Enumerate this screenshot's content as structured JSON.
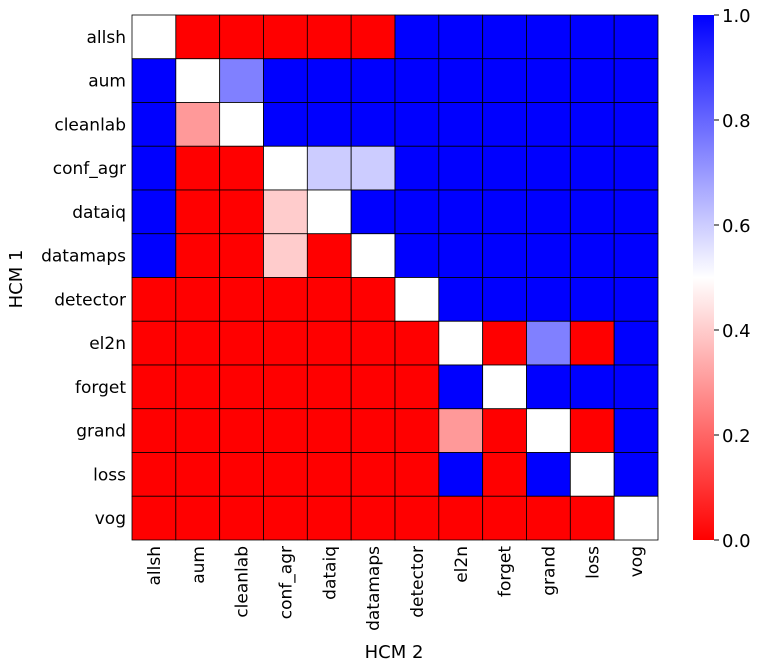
{
  "chart_data": {
    "type": "heatmap",
    "title": "",
    "xlabel": "HCM 2",
    "ylabel": "HCM 1",
    "x_categories": [
      "allsh",
      "aum",
      "cleanlab",
      "conf_agr",
      "dataiq",
      "datamaps",
      "detector",
      "el2n",
      "forget",
      "grand",
      "loss",
      "vog"
    ],
    "y_categories": [
      "allsh",
      "aum",
      "cleanlab",
      "conf_agr",
      "dataiq",
      "datamaps",
      "detector",
      "el2n",
      "forget",
      "grand",
      "loss",
      "vog"
    ],
    "values": [
      [
        0.5,
        0.0,
        0.0,
        0.0,
        0.0,
        0.0,
        1.0,
        1.0,
        1.0,
        1.0,
        1.0,
        1.0
      ],
      [
        1.0,
        0.5,
        0.75,
        1.0,
        1.0,
        1.0,
        1.0,
        1.0,
        1.0,
        1.0,
        1.0,
        1.0
      ],
      [
        1.0,
        0.3,
        0.5,
        1.0,
        1.0,
        1.0,
        1.0,
        1.0,
        1.0,
        1.0,
        1.0,
        1.0
      ],
      [
        1.0,
        0.0,
        0.0,
        0.5,
        0.6,
        0.6,
        1.0,
        1.0,
        1.0,
        1.0,
        1.0,
        1.0
      ],
      [
        1.0,
        0.0,
        0.0,
        0.4,
        0.5,
        1.0,
        1.0,
        1.0,
        1.0,
        1.0,
        1.0,
        1.0
      ],
      [
        1.0,
        0.0,
        0.0,
        0.4,
        0.0,
        0.5,
        1.0,
        1.0,
        1.0,
        1.0,
        1.0,
        1.0
      ],
      [
        0.0,
        0.0,
        0.0,
        0.0,
        0.0,
        0.0,
        0.5,
        1.0,
        1.0,
        1.0,
        1.0,
        1.0
      ],
      [
        0.0,
        0.0,
        0.0,
        0.0,
        0.0,
        0.0,
        0.0,
        0.5,
        0.0,
        0.75,
        0.0,
        1.0
      ],
      [
        0.0,
        0.0,
        0.0,
        0.0,
        0.0,
        0.0,
        0.0,
        1.0,
        0.5,
        1.0,
        1.0,
        1.0
      ],
      [
        0.0,
        0.0,
        0.0,
        0.0,
        0.0,
        0.0,
        0.0,
        0.3,
        0.0,
        0.5,
        0.0,
        1.0
      ],
      [
        0.0,
        0.0,
        0.0,
        0.0,
        0.0,
        0.0,
        0.0,
        1.0,
        0.0,
        1.0,
        0.5,
        1.0
      ],
      [
        0.0,
        0.0,
        0.0,
        0.0,
        0.0,
        0.0,
        0.0,
        0.0,
        0.0,
        0.0,
        0.0,
        0.5
      ]
    ],
    "colorbar": {
      "range": [
        0.0,
        1.0
      ],
      "ticks": [
        0.0,
        0.2,
        0.4,
        0.6,
        0.8,
        1.0
      ],
      "tick_labels": [
        "0.0",
        "0.2",
        "0.4",
        "0.6",
        "0.8",
        "1.0"
      ],
      "colormap": "bwr_r",
      "low_color": "#ff0000",
      "mid_color": "#ffffff",
      "high_color": "#0000ff"
    },
    "grid": true
  }
}
